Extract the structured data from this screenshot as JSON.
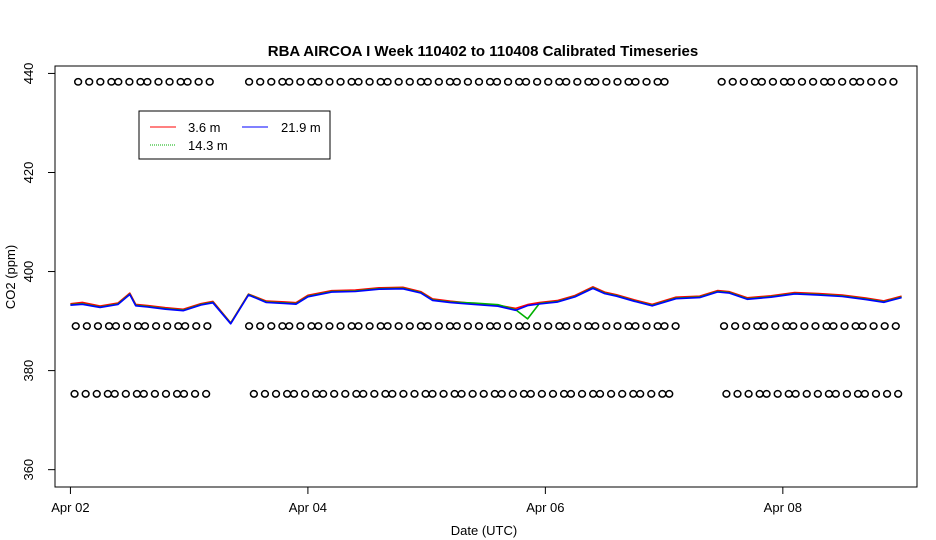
{
  "chart_data": {
    "type": "line",
    "title": "RBA AIRCOA I  Week 110402 to 110408  Calibrated Timeseries",
    "xlabel": "Date (UTC)",
    "ylabel": "CO2 (ppm)",
    "x_unit": "days since Apr 02 00:00 UTC",
    "xlim": [
      -0.13,
      7.13
    ],
    "ylim": [
      356.5,
      441.5
    ],
    "x_ticks": [
      {
        "value": 0,
        "label": "Apr 02"
      },
      {
        "value": 2,
        "label": "Apr 04"
      },
      {
        "value": 4,
        "label": "Apr 06"
      },
      {
        "value": 6,
        "label": "Apr 08"
      }
    ],
    "y_ticks": [
      360,
      380,
      400,
      420,
      440
    ],
    "grid": false,
    "legend": {
      "placement": "top-left",
      "entries": [
        {
          "name": "3.6 m",
          "color": "#ff0000"
        },
        {
          "name": "21.9 m",
          "color": "#0000ff"
        },
        {
          "name": "14.3 m",
          "color": "#00b000"
        }
      ]
    },
    "series": [
      {
        "name": "3.6 m",
        "color": "#ff0000",
        "offset": 0.45,
        "x": [
          0.0,
          0.1,
          0.25,
          0.4,
          0.5,
          0.55,
          0.65,
          0.8,
          0.95,
          1.1,
          1.2,
          1.35,
          1.5,
          1.65,
          1.8,
          1.9,
          2.0,
          2.2,
          2.4,
          2.6,
          2.8,
          2.95,
          3.05,
          3.2,
          3.4,
          3.6,
          3.75,
          3.85,
          3.95,
          4.1,
          4.25,
          4.4,
          4.5,
          4.6,
          4.75,
          4.9,
          5.1,
          5.3,
          5.45,
          5.55,
          5.7,
          5.9,
          6.1,
          6.3,
          6.5,
          6.7,
          6.85,
          7.0
        ],
        "y": [
          393.4,
          393.5,
          393.2,
          393.4,
          395.5,
          393.5,
          392.8,
          392.7,
          392.4,
          393.2,
          394.1,
          389.5,
          395.2,
          394.2,
          393.6,
          393.6,
          395.3,
          395.8,
          396.3,
          396.7,
          396.5,
          396.1,
          394.3,
          393.8,
          393.7,
          392.9,
          392.5,
          393.4,
          393.4,
          394.2,
          395.1,
          396.6,
          396.0,
          395.1,
          394.1,
          393.5,
          394.5,
          395.0,
          396.2,
          395.6,
          394.8,
          395.0,
          395.5,
          395.7,
          395.0,
          394.5,
          394.2,
          394.7
        ]
      },
      {
        "name": "14.3 m",
        "color": "#00b000",
        "offset": 0.0,
        "x": [
          0.0,
          0.1,
          0.25,
          0.4,
          0.5,
          0.55,
          0.65,
          0.8,
          0.95,
          1.1,
          1.2,
          1.35,
          1.5,
          1.65,
          1.8,
          1.9,
          2.0,
          2.2,
          2.4,
          2.6,
          2.8,
          2.95,
          3.05,
          3.2,
          3.4,
          3.6,
          3.75,
          3.85,
          3.95,
          4.1,
          4.25,
          4.4,
          4.5,
          4.6,
          4.75,
          4.9,
          5.1,
          5.3,
          5.45,
          5.55,
          5.7,
          5.9,
          6.1,
          6.3,
          6.5,
          6.7,
          6.85,
          7.0
        ],
        "y": [
          393.3,
          393.3,
          393.1,
          393.3,
          395.4,
          393.4,
          392.7,
          392.6,
          392.3,
          393.1,
          394.0,
          389.5,
          395.2,
          394.1,
          393.5,
          393.5,
          395.2,
          395.7,
          396.2,
          396.6,
          396.4,
          396.0,
          394.2,
          393.7,
          393.9,
          393.1,
          392.3,
          390.6,
          393.3,
          394.1,
          395.0,
          396.5,
          395.9,
          395.0,
          394.0,
          393.4,
          394.4,
          394.9,
          396.1,
          395.5,
          394.7,
          394.9,
          395.4,
          395.6,
          394.9,
          394.4,
          394.1,
          394.6
        ]
      },
      {
        "name": "21.9 m",
        "color": "#0000ff",
        "offset": 0.0,
        "x": [
          0.0,
          0.1,
          0.25,
          0.4,
          0.5,
          0.55,
          0.65,
          0.8,
          0.95,
          1.1,
          1.2,
          1.35,
          1.5,
          1.65,
          1.8,
          1.9,
          2.0,
          2.2,
          2.4,
          2.6,
          2.8,
          2.95,
          3.05,
          3.2,
          3.4,
          3.6,
          3.75,
          3.85,
          3.95,
          4.1,
          4.25,
          4.4,
          4.5,
          4.6,
          4.75,
          4.9,
          5.1,
          5.3,
          5.45,
          5.55,
          5.7,
          5.9,
          6.1,
          6.3,
          6.5,
          6.7,
          6.85,
          7.0
        ],
        "y": [
          393.2,
          393.2,
          393.0,
          393.2,
          395.3,
          393.3,
          392.6,
          392.5,
          392.2,
          393.0,
          393.9,
          389.4,
          395.1,
          394.0,
          393.4,
          393.4,
          395.1,
          395.6,
          396.1,
          396.5,
          396.3,
          395.9,
          394.1,
          393.6,
          393.6,
          392.8,
          392.2,
          393.3,
          393.2,
          394.0,
          394.9,
          396.4,
          395.8,
          394.9,
          393.9,
          393.3,
          394.3,
          394.8,
          396.0,
          395.4,
          394.6,
          394.8,
          395.3,
          395.5,
          394.8,
          394.3,
          394.0,
          394.5
        ]
      }
    ],
    "calibration_markers": {
      "marker": "circle",
      "color": "#000000",
      "step": 0.0833,
      "levels": [
        {
          "y": 438.3,
          "segments": [
            [
              0.08,
              1.18
            ],
            [
              1.52,
              5.1
            ],
            [
              5.5,
              6.98
            ]
          ]
        },
        {
          "y": 389.0,
          "segments": [
            [
              0.06,
              1.18
            ],
            [
              1.52,
              5.12
            ],
            [
              5.52,
              6.98
            ]
          ]
        },
        {
          "y": 375.3,
          "segments": [
            [
              0.05,
              1.18
            ],
            [
              1.56,
              5.12
            ],
            [
              5.54,
              6.98
            ]
          ]
        }
      ]
    }
  }
}
